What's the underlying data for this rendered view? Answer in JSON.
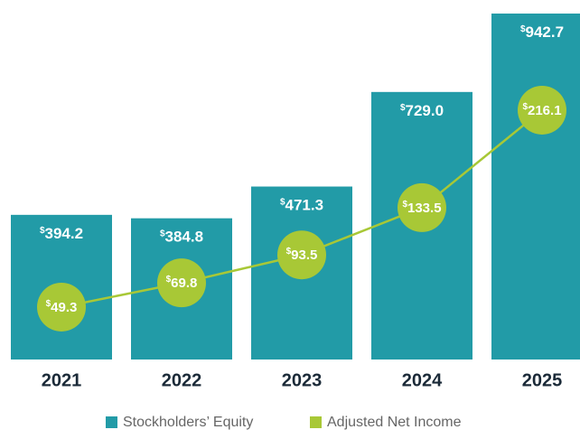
{
  "chart_data": {
    "type": "bar-line",
    "categories": [
      "2021",
      "2022",
      "2023",
      "2024",
      "2025"
    ],
    "series": [
      {
        "name": "Stockholders’ Equity",
        "color": "#229ba7",
        "type": "bar",
        "values": [
          394.2,
          384.8,
          471.3,
          729.0,
          942.7
        ],
        "value_labels": [
          "$394.2",
          "$384.8",
          "$471.3",
          "$729.0",
          "$942.7"
        ]
      },
      {
        "name": "Adjusted Net Income",
        "color": "#a8c836",
        "type": "line",
        "values": [
          49.3,
          69.8,
          93.5,
          133.5,
          216.1
        ],
        "value_labels": [
          "$49.3",
          "$69.8",
          "$93.5",
          "$133.5",
          "$216.1"
        ]
      }
    ]
  }
}
